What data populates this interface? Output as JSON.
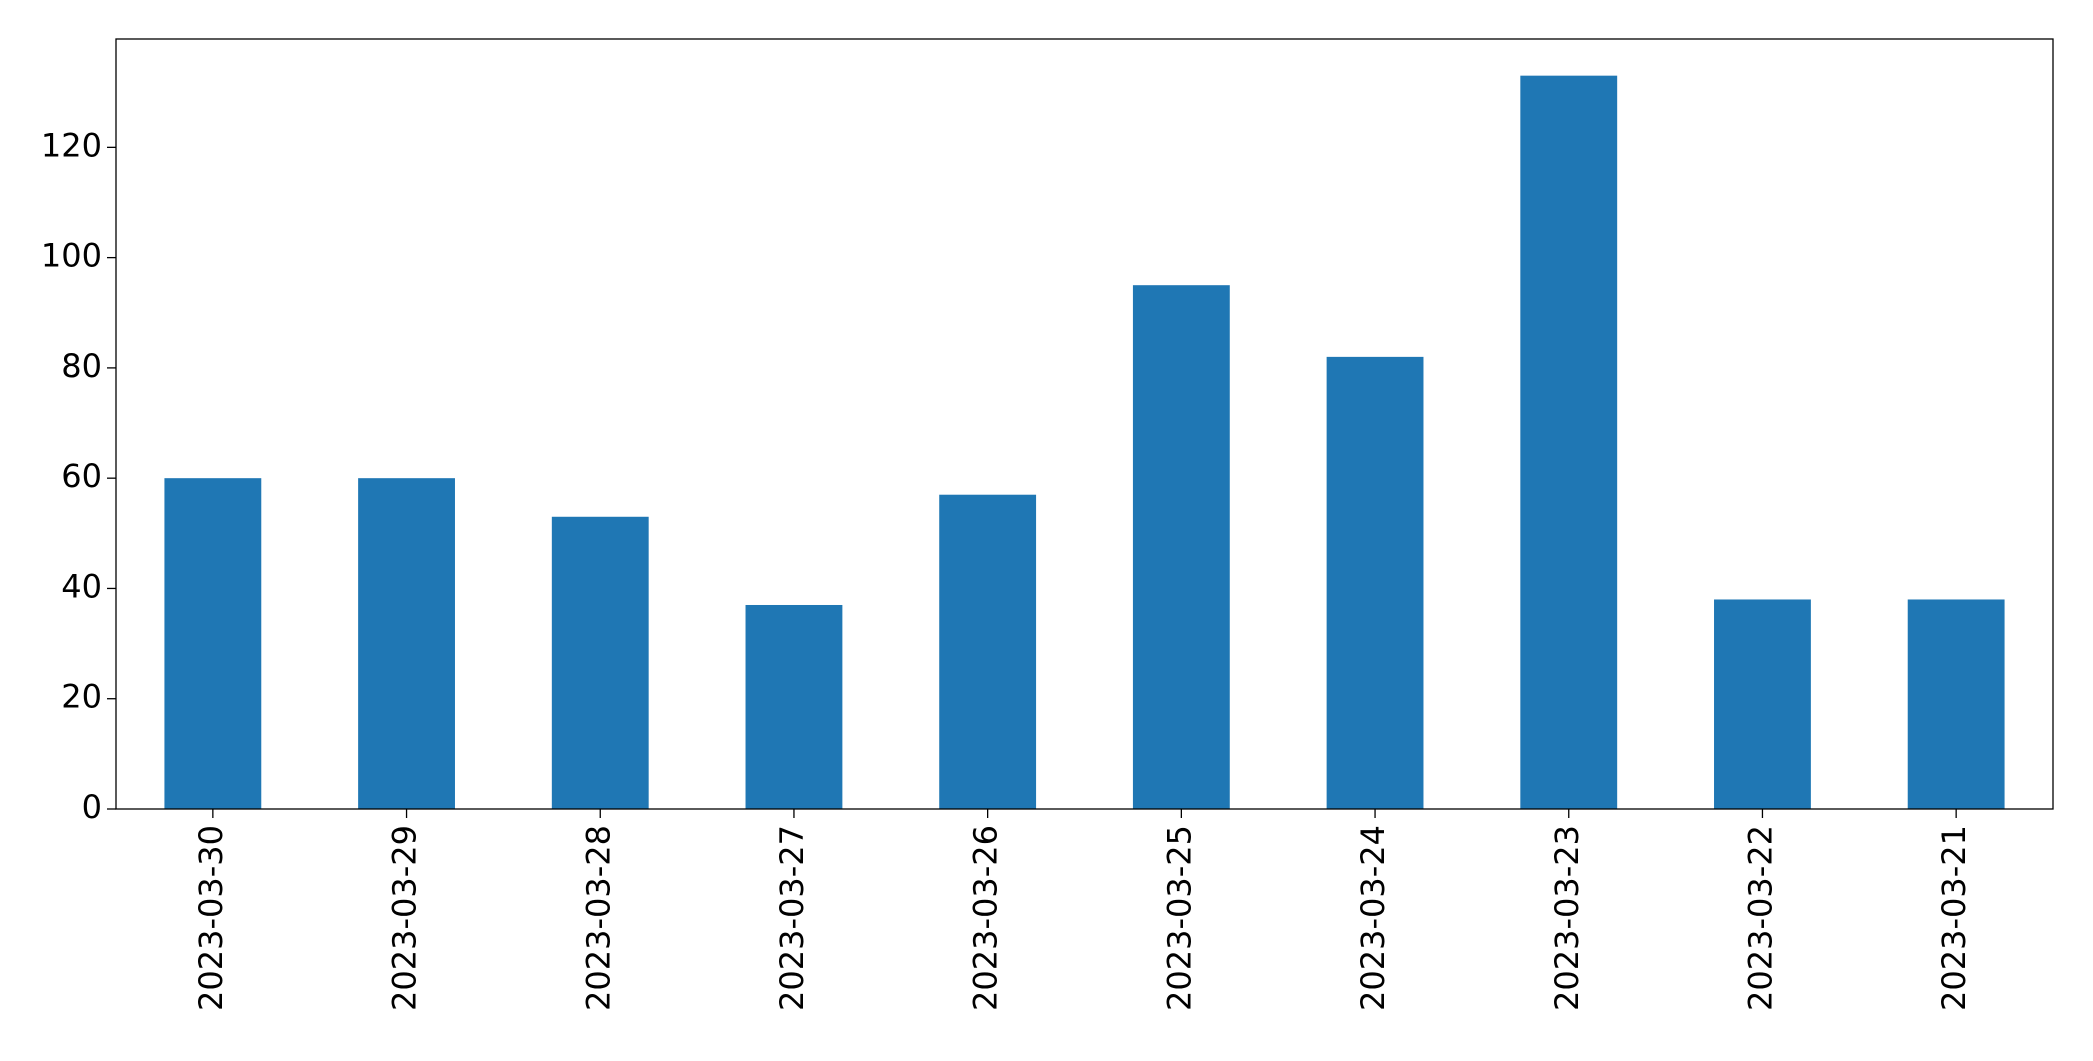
{
  "chart_data": {
    "type": "bar",
    "categories": [
      "2023-03-30",
      "2023-03-29",
      "2023-03-28",
      "2023-03-27",
      "2023-03-26",
      "2023-03-25",
      "2023-03-24",
      "2023-03-23",
      "2023-03-22",
      "2023-03-21"
    ],
    "values": [
      60,
      60,
      53,
      37,
      57,
      95,
      82,
      133,
      38,
      38
    ],
    "color": "#1f77b4",
    "ylim": [
      0,
      139.65
    ],
    "yticks": [
      0,
      20,
      40,
      60,
      80,
      100,
      120
    ],
    "grid": false
  }
}
